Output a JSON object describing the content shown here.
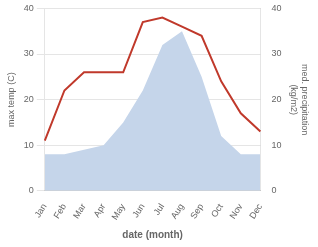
{
  "chart_data": {
    "type": "line",
    "categories": [
      "Jan",
      "Feb",
      "Mar",
      "Apr",
      "May",
      "Jun",
      "Jul",
      "Aug",
      "Sep",
      "Oct",
      "Nov",
      "Dec"
    ],
    "series": [
      {
        "type": "area",
        "color": "#c5d5ea",
        "axis": "y2",
        "values": [
          8,
          8,
          9,
          10,
          15,
          22,
          32,
          35,
          25,
          12,
          8,
          8
        ]
      },
      {
        "type": "line",
        "color": "#c0392b",
        "values": [
          11,
          22,
          26,
          26,
          26,
          37,
          38,
          36,
          34,
          24,
          17,
          13
        ]
      }
    ],
    "xlabel": "date (month)",
    "ylabel": "max temp (C)",
    "y2label": "med. precipitation\n(kg/m2)",
    "ylim": [
      0,
      40
    ],
    "yticks": [
      0,
      10,
      20,
      30,
      40
    ],
    "y2lim": [
      0,
      40
    ],
    "y2ticks": [
      0,
      10,
      20,
      30,
      40
    ],
    "grid": true
  }
}
